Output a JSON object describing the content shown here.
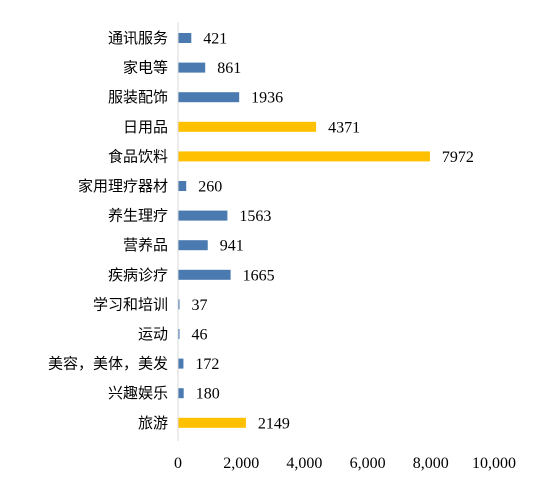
{
  "chart_data": {
    "type": "bar",
    "orientation": "horizontal",
    "categories": [
      "通讯服务",
      "家电等",
      "服装配饰",
      "日用品",
      "食品饮料",
      "家用理疗器材",
      "养生理疗",
      "营养品",
      "疾病诊疗",
      "学习和培训",
      "运动",
      "美容，美体，美发",
      "兴趣娱乐",
      "旅游"
    ],
    "values": [
      421,
      861,
      1936,
      4371,
      7972,
      260,
      1563,
      941,
      1665,
      37,
      46,
      172,
      180,
      2149
    ],
    "highlighted": [
      "日用品",
      "食品饮料",
      "旅游"
    ],
    "colors": {
      "default": "#4a7ab0",
      "highlight": "#ffc000"
    },
    "xlim": [
      0,
      10000
    ],
    "xticks": [
      0,
      2000,
      4000,
      6000,
      8000,
      10000
    ],
    "xtick_labels": [
      "0",
      "2,000",
      "4,000",
      "6,000",
      "8,000",
      "10,000"
    ],
    "grid": false,
    "legend": "none",
    "title": "",
    "xlabel": "",
    "ylabel": ""
  }
}
